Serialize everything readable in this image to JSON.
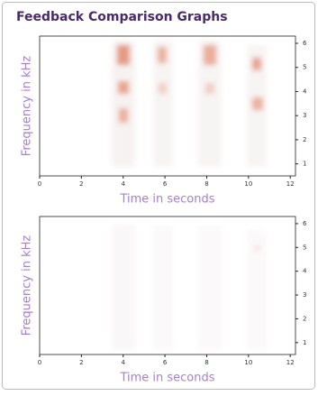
{
  "header": {
    "title": "Feedback Comparison Graphs"
  },
  "chart_data": [
    {
      "type": "spectrogram",
      "xlabel": "Time in seconds",
      "ylabel": "Frequency in kHz",
      "xlim": [
        0,
        12.25
      ],
      "ylim": [
        0.5,
        6.3
      ],
      "xticks": [
        0,
        2,
        4,
        6,
        8,
        10,
        12
      ],
      "yticks": [
        1,
        2,
        3,
        4,
        5,
        6
      ],
      "color": "#e0522a"
    },
    {
      "type": "spectrogram",
      "xlabel": "Time in seconds",
      "ylabel": "Frequency in kHz",
      "xlim": [
        0,
        12.25
      ],
      "ylim": [
        0.5,
        6.3
      ],
      "xticks": [
        0,
        2,
        4,
        6,
        8,
        10,
        12
      ],
      "yticks": [
        1,
        2,
        3,
        4,
        5,
        6
      ],
      "color": "#e0522a"
    }
  ]
}
